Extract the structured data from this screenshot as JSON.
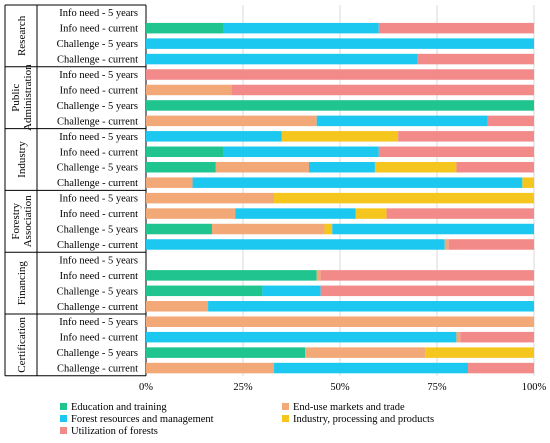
{
  "chart_data": {
    "type": "bar",
    "stacked": true,
    "orientation": "horizontal",
    "xlim": [
      0,
      100
    ],
    "x_ticks": [
      "0%",
      "25%",
      "50%",
      "75%",
      "100%"
    ],
    "legend_position": "bottom",
    "legend": [
      {
        "key": "edu",
        "name": "Education and training",
        "color": "#1fc48e"
      },
      {
        "key": "end",
        "name": "End-use markets and trade",
        "color": "#f3a878"
      },
      {
        "key": "for",
        "name": "Forest resources and management",
        "color": "#1cc8f0"
      },
      {
        "key": "ind",
        "name": "Industry, processing and products",
        "color": "#f5c61e"
      },
      {
        "key": "util",
        "name": "Utilization of forests",
        "color": "#f28a8a"
      }
    ],
    "groups": [
      {
        "name": "Research",
        "rows": [
          {
            "label": "Info need - 5 years",
            "segments": []
          },
          {
            "label": "Info need - current",
            "segments": [
              {
                "s": "edu",
                "v": 20
              },
              {
                "s": "for",
                "v": 40
              },
              {
                "s": "util",
                "v": 40
              }
            ]
          },
          {
            "label": "Challenge - 5 years",
            "segments": [
              {
                "s": "for",
                "v": 100
              }
            ]
          },
          {
            "label": "Challenge - current",
            "segments": [
              {
                "s": "for",
                "v": 70
              },
              {
                "s": "util",
                "v": 30
              }
            ]
          }
        ]
      },
      {
        "name": "Public Administration",
        "rows": [
          {
            "label": "Info need - 5 years",
            "segments": [
              {
                "s": "util",
                "v": 100
              }
            ]
          },
          {
            "label": "Info need - current",
            "segments": [
              {
                "s": "end",
                "v": 22
              },
              {
                "s": "util",
                "v": 78
              }
            ]
          },
          {
            "label": "Challenge - 5 years",
            "segments": [
              {
                "s": "edu",
                "v": 100
              }
            ]
          },
          {
            "label": "Challenge - current",
            "segments": [
              {
                "s": "end",
                "v": 44
              },
              {
                "s": "for",
                "v": 44
              },
              {
                "s": "util",
                "v": 12
              }
            ]
          }
        ]
      },
      {
        "name": "Industry",
        "rows": [
          {
            "label": "Info need - 5 years",
            "segments": [
              {
                "s": "for",
                "v": 35
              },
              {
                "s": "ind",
                "v": 30
              },
              {
                "s": "util",
                "v": 35
              }
            ]
          },
          {
            "label": "Info need - current",
            "segments": [
              {
                "s": "edu",
                "v": 20
              },
              {
                "s": "for",
                "v": 40
              },
              {
                "s": "util",
                "v": 40
              }
            ]
          },
          {
            "label": "Challenge - 5 years",
            "segments": [
              {
                "s": "edu",
                "v": 18
              },
              {
                "s": "end",
                "v": 24
              },
              {
                "s": "for",
                "v": 17
              },
              {
                "s": "ind",
                "v": 21
              },
              {
                "s": "util",
                "v": 20
              }
            ]
          },
          {
            "label": "Challenge - current",
            "segments": [
              {
                "s": "end",
                "v": 12
              },
              {
                "s": "for",
                "v": 85
              },
              {
                "s": "ind",
                "v": 3
              }
            ]
          }
        ]
      },
      {
        "name": "Forestry Association",
        "rows": [
          {
            "label": "Info need - 5 years",
            "segments": [
              {
                "s": "end",
                "v": 33
              },
              {
                "s": "ind",
                "v": 67
              }
            ]
          },
          {
            "label": "Info need - current",
            "segments": [
              {
                "s": "end",
                "v": 23
              },
              {
                "s": "for",
                "v": 31
              },
              {
                "s": "ind",
                "v": 8
              },
              {
                "s": "util",
                "v": 38
              }
            ]
          },
          {
            "label": "Challenge - 5 years",
            "segments": [
              {
                "s": "edu",
                "v": 17
              },
              {
                "s": "end",
                "v": 29
              },
              {
                "s": "ind",
                "v": 2
              },
              {
                "s": "for",
                "v": 52
              }
            ]
          },
          {
            "label": "Challenge - current",
            "segments": [
              {
                "s": "for",
                "v": 77
              },
              {
                "s": "end",
                "v": 1
              },
              {
                "s": "util",
                "v": 22
              }
            ]
          }
        ]
      },
      {
        "name": "Financing",
        "rows": [
          {
            "label": "Info need - 5 years",
            "segments": []
          },
          {
            "label": "Info need - current",
            "segments": [
              {
                "s": "edu",
                "v": 44
              },
              {
                "s": "end",
                "v": 1
              },
              {
                "s": "util",
                "v": 55
              }
            ]
          },
          {
            "label": "Challenge - 5 years",
            "segments": [
              {
                "s": "edu",
                "v": 30
              },
              {
                "s": "for",
                "v": 15
              },
              {
                "s": "util",
                "v": 55
              }
            ]
          },
          {
            "label": "Challenge - current",
            "segments": [
              {
                "s": "end",
                "v": 16
              },
              {
                "s": "for",
                "v": 84
              }
            ]
          }
        ]
      },
      {
        "name": "Certification",
        "rows": [
          {
            "label": "Info need - 5 years",
            "segments": [
              {
                "s": "end",
                "v": 100
              }
            ]
          },
          {
            "label": "Info need - current",
            "segments": [
              {
                "s": "for",
                "v": 80
              },
              {
                "s": "end",
                "v": 1
              },
              {
                "s": "util",
                "v": 19
              }
            ]
          },
          {
            "label": "Challenge - 5 years",
            "segments": [
              {
                "s": "edu",
                "v": 41
              },
              {
                "s": "end",
                "v": 31
              },
              {
                "s": "ind",
                "v": 28
              }
            ]
          },
          {
            "label": "Challenge - current",
            "segments": [
              {
                "s": "end",
                "v": 33
              },
              {
                "s": "for",
                "v": 50
              },
              {
                "s": "util",
                "v": 17
              }
            ]
          }
        ]
      }
    ]
  }
}
